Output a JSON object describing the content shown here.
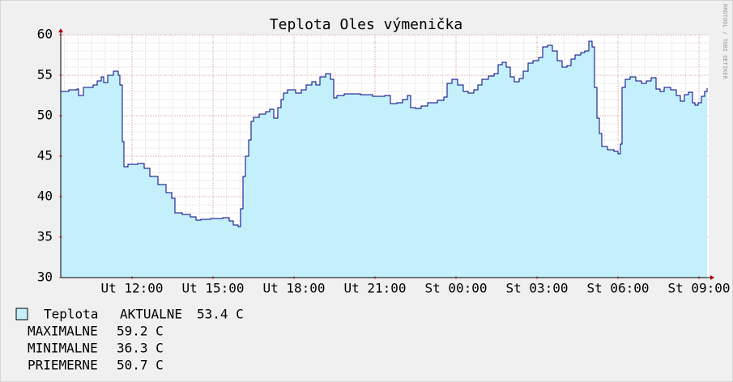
{
  "chart_data": {
    "type": "step-area",
    "title": "Teplota Oles výmenička",
    "watermark": "RRDTOOL / TOBI OETIKER",
    "xlim": [
      9.36,
      33.36
    ],
    "xticks": [
      {
        "value": 12,
        "label": "Ut 12:00"
      },
      {
        "value": 15,
        "label": "Ut 15:00"
      },
      {
        "value": 18,
        "label": "Ut 18:00"
      },
      {
        "value": 21,
        "label": "Ut 21:00"
      },
      {
        "value": 24,
        "label": "St 00:00"
      },
      {
        "value": 27,
        "label": "St 03:00"
      },
      {
        "value": 30,
        "label": "St 06:00"
      },
      {
        "value": 33,
        "label": "St 09:00"
      }
    ],
    "ylim": [
      30,
      60
    ],
    "yticks": [
      30,
      35,
      40,
      45,
      50,
      55,
      60
    ],
    "grid": true,
    "series": [
      {
        "name": "Teplota",
        "color": "#000080",
        "fill": "#c4f0fc",
        "x": [
          9.36,
          9.66,
          9.96,
          10.02,
          10.2,
          10.56,
          10.71,
          10.86,
          10.95,
          11.1,
          11.31,
          11.49,
          11.55,
          11.64,
          11.7,
          11.85,
          12.21,
          12.45,
          12.66,
          12.96,
          13.26,
          13.47,
          13.59,
          13.86,
          14.16,
          14.37,
          14.55,
          14.91,
          15.36,
          15.6,
          15.75,
          15.93,
          16.02,
          16.11,
          16.2,
          16.32,
          16.41,
          16.5,
          16.71,
          16.95,
          17.1,
          17.25,
          17.4,
          17.52,
          17.61,
          17.76,
          18.06,
          18.27,
          18.45,
          18.66,
          18.81,
          18.96,
          19.17,
          19.35,
          19.47,
          19.59,
          19.86,
          20.46,
          20.91,
          21.36,
          21.57,
          21.81,
          22.02,
          22.2,
          22.32,
          22.5,
          22.71,
          22.95,
          23.31,
          23.55,
          23.67,
          23.85,
          24.06,
          24.27,
          24.45,
          24.66,
          24.81,
          24.96,
          25.2,
          25.41,
          25.56,
          25.71,
          25.86,
          26.01,
          26.16,
          26.34,
          26.49,
          26.67,
          26.85,
          27.06,
          27.21,
          27.39,
          27.57,
          27.75,
          27.93,
          28.11,
          28.26,
          28.41,
          28.62,
          28.77,
          28.92,
          29.04,
          29.13,
          29.22,
          29.31,
          29.4,
          29.61,
          29.85,
          30.0,
          30.09,
          30.15,
          30.27,
          30.45,
          30.66,
          30.87,
          31.05,
          31.23,
          31.41,
          31.56,
          31.71,
          31.95,
          32.16,
          32.31,
          32.46,
          32.61,
          32.76,
          32.85,
          32.97,
          33.09,
          33.21,
          33.3
        ],
        "values": [
          53.0,
          53.2,
          53.3,
          52.5,
          53.5,
          53.8,
          54.3,
          54.8,
          54.1,
          55.0,
          55.5,
          55.0,
          53.8,
          46.8,
          43.7,
          44.0,
          44.1,
          43.5,
          42.5,
          41.5,
          40.5,
          39.8,
          38.0,
          37.8,
          37.5,
          37.1,
          37.2,
          37.3,
          37.4,
          37.0,
          36.5,
          36.3,
          38.5,
          42.5,
          45.0,
          47.0,
          49.3,
          49.8,
          50.2,
          50.5,
          50.8,
          49.7,
          51.0,
          52.0,
          52.8,
          53.2,
          52.8,
          53.2,
          53.8,
          54.2,
          53.8,
          54.8,
          55.2,
          54.5,
          52.2,
          52.5,
          52.7,
          52.6,
          52.4,
          52.5,
          51.5,
          51.6,
          52.0,
          52.5,
          51.0,
          50.9,
          51.2,
          51.6,
          51.9,
          52.3,
          54.0,
          54.5,
          53.8,
          53.0,
          52.8,
          53.2,
          53.8,
          54.5,
          54.9,
          55.2,
          56.3,
          56.6,
          56.0,
          54.8,
          54.2,
          54.6,
          55.5,
          56.5,
          56.8,
          57.2,
          58.5,
          58.7,
          58.0,
          56.8,
          56.0,
          56.2,
          57.0,
          57.5,
          57.8,
          58.0,
          59.2,
          58.5,
          53.5,
          49.7,
          47.8,
          46.2,
          45.8,
          45.6,
          45.3,
          46.5,
          53.5,
          54.5,
          54.8,
          54.3,
          54.0,
          54.3,
          54.7,
          53.3,
          53.0,
          53.5,
          53.2,
          52.5,
          51.8,
          52.6,
          52.9,
          51.6,
          51.3,
          51.6,
          52.4,
          53.0,
          53.4
        ]
      }
    ],
    "legend": {
      "current_label": "AKTUALNE",
      "current": "53.4 C",
      "stats": [
        {
          "label": "MAXIMALNE",
          "value": "59.2 C"
        },
        {
          "label": "MINIMALNE",
          "value": "36.3 C"
        },
        {
          "label": "PRIEMERNE",
          "value": "50.7 C"
        }
      ]
    }
  }
}
